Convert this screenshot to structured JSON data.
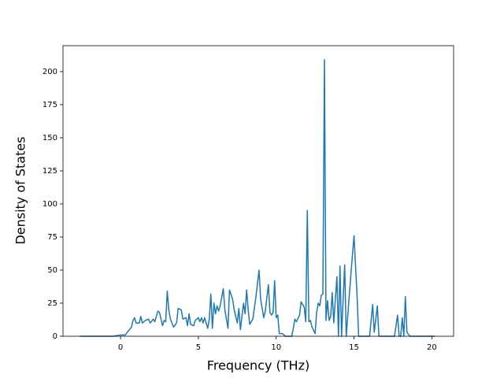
{
  "chart_data": {
    "type": "line",
    "xlabel": "Frequency (THz)",
    "ylabel": "Density of States",
    "color": "#1f77b4",
    "x": [
      -2.6,
      -0.5,
      0,
      0.3,
      0.5,
      0.7,
      0.8,
      0.9,
      1.0,
      1.2,
      1.3,
      1.4,
      1.6,
      1.8,
      1.9,
      2.1,
      2.2,
      2.4,
      2.5,
      2.6,
      2.7,
      2.8,
      2.9,
      3.0,
      3.1,
      3.2,
      3.3,
      3.4,
      3.6,
      3.7,
      3.9,
      4.0,
      4.2,
      4.3,
      4.4,
      4.5,
      4.7,
      4.8,
      5.0,
      5.1,
      5.2,
      5.3,
      5.4,
      5.5,
      5.6,
      5.7,
      5.8,
      5.9,
      6.0,
      6.1,
      6.2,
      6.3,
      6.4,
      6.6,
      6.7,
      6.9,
      7.0,
      7.2,
      7.3,
      7.5,
      7.6,
      7.7,
      7.9,
      8.0,
      8.1,
      8.2,
      8.3,
      8.5,
      8.7,
      8.9,
      9.0,
      9.2,
      9.3,
      9.5,
      9.6,
      9.7,
      9.8,
      9.9,
      10.0,
      10.1,
      10.2,
      10.4,
      10.6,
      11.0,
      11.1,
      11.2,
      11.3,
      11.5,
      11.6,
      11.8,
      11.9,
      12.0,
      12.1,
      12.2,
      12.3,
      12.5,
      12.6,
      12.7,
      12.8,
      12.9,
      13.0,
      13.1,
      13.2,
      13.3,
      13.4,
      13.5,
      13.6,
      13.7,
      13.9,
      14.0,
      14.1,
      14.2,
      14.4,
      14.5,
      14.8,
      15.0,
      15.2,
      15.3,
      16.0,
      16.2,
      16.3,
      16.5,
      16.6,
      17.6,
      17.8,
      17.9,
      18.0,
      18.1,
      18.2,
      18.3,
      18.4,
      18.6,
      20.2
    ],
    "values": [
      0,
      0,
      1,
      1,
      4,
      7,
      12,
      14,
      10,
      10,
      15,
      10,
      12,
      13,
      10,
      13,
      11,
      19,
      18,
      13,
      8,
      12,
      11,
      34,
      20,
      13,
      10,
      7,
      10,
      21,
      20,
      13,
      14,
      8,
      17,
      9,
      8,
      12,
      14,
      11,
      14,
      10,
      14,
      10,
      6,
      13,
      32,
      6,
      25,
      17,
      23,
      19,
      23,
      36,
      20,
      6,
      35,
      28,
      20,
      10,
      21,
      5,
      25,
      17,
      35,
      20,
      9,
      13,
      30,
      50,
      28,
      14,
      19,
      39,
      18,
      16,
      18,
      42,
      14,
      16,
      2,
      2,
      0,
      0,
      6,
      13,
      11,
      16,
      26,
      22,
      11,
      95,
      11,
      12,
      7,
      2,
      18,
      25,
      23,
      31,
      32,
      209,
      12,
      27,
      12,
      15,
      33,
      10,
      45,
      0,
      53,
      0,
      54,
      0,
      47,
      76,
      30,
      0,
      0,
      24,
      3,
      23,
      0,
      0,
      16,
      0,
      0,
      14,
      0,
      30,
      3,
      0,
      0
    ],
    "xlim": [
      -3.7,
      21.4
    ],
    "ylim": [
      0,
      219.6
    ],
    "xticks": [
      0,
      5,
      10,
      15,
      20
    ],
    "yticks": [
      0,
      25,
      50,
      75,
      100,
      125,
      150,
      175,
      200
    ]
  }
}
